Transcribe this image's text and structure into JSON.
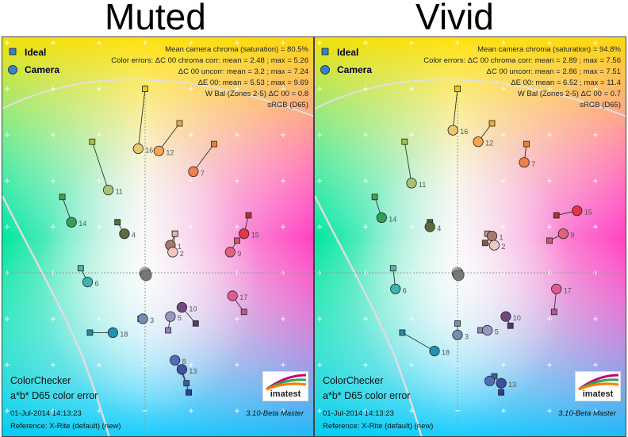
{
  "titles": {
    "left": "Muted",
    "right": "Vivid"
  },
  "legend": {
    "ideal": "Ideal",
    "camera": "Camera"
  },
  "panels": [
    {
      "stats": [
        "Mean camera chroma (saturation) = 80.5%",
        "Color errors: ΔC 00 chroma corr:  mean = 2.48 ;  max = 5.26",
        "ΔC 00 uncorr:  mean = 3.2 ;  max = 7.24",
        "ΔE 00:  mean = 5.53 ;  max = 9.69",
        "W Bal (Zones 2-5) ΔC 00 = 0.8",
        "sRGB (D65)"
      ],
      "footer": {
        "line1": "ColorChecker",
        "line2": "a*b* D65 color error",
        "date": "01-Jul-2014 14:13:23",
        "version": "3.10-Beta  Master",
        "reference": "Reference: X-Rite (default) (new)"
      },
      "logo": "imatest"
    },
    {
      "stats": [
        "Mean camera chroma (saturation) = 94.8%",
        "Color errors: ΔC 00 chroma corr:  mean = 2.89 ;  max = 7.56",
        "ΔC 00 uncorr:  mean = 2.86 ;  max = 7.51",
        "ΔE 00:  mean = 6.52 ;  max = 11.4",
        "W Bal (Zones 2-5) ΔC 00 = 0.7",
        "sRGB (D65)"
      ],
      "footer": {
        "line1": "ColorChecker",
        "line2": "a*b* D65 color error",
        "date": "01-Jul-2014 14:13:23",
        "version": "3.10-Beta  Master",
        "reference": "Reference: X-Rite (default) (new)"
      },
      "logo": "imatest"
    }
  ],
  "chart_data": [
    {
      "type": "scatter",
      "title": "Muted",
      "xlim": [
        -60,
        70
      ],
      "ylim": [
        -70,
        100
      ],
      "grid": true,
      "legend_position": "top-left",
      "series": [
        {
          "name": "Ideal",
          "marker": "square",
          "points": [
            {
              "label": "1",
              "x": 13,
              "y": 17,
              "color": "#c79a84"
            },
            {
              "label": "2",
              "x": 13,
              "y": 17,
              "color": "#e9b7a4"
            },
            {
              "label": "3",
              "x": -2,
              "y": -20,
              "color": "#7290b2"
            },
            {
              "label": "4",
              "x": -12,
              "y": 22,
              "color": "#5d6b38"
            },
            {
              "label": "5",
              "x": 10,
              "y": -25,
              "color": "#8e86ba"
            },
            {
              "label": "6",
              "x": -28,
              "y": 2,
              "color": "#56b3b1"
            },
            {
              "label": "7",
              "x": 30,
              "y": 56,
              "color": "#f17d2c"
            },
            {
              "label": "8",
              "x": 18,
              "y": -48,
              "color": "#3d5cac"
            },
            {
              "label": "9",
              "x": 40,
              "y": 14,
              "color": "#d0566c"
            },
            {
              "label": "10",
              "x": 22,
              "y": -22,
              "color": "#5a376a"
            },
            {
              "label": "11",
              "x": -23,
              "y": 57,
              "color": "#a6c04d"
            },
            {
              "label": "12",
              "x": 15,
              "y": 65,
              "color": "#f8a530"
            },
            {
              "label": "13",
              "x": 19,
              "y": -52,
              "color": "#2c4194"
            },
            {
              "label": "14",
              "x": -36,
              "y": 33,
              "color": "#4b9b4a"
            },
            {
              "label": "15",
              "x": 45,
              "y": 25,
              "color": "#b32d35"
            },
            {
              "label": "16",
              "x": 0,
              "y": 80,
              "color": "#e9c820"
            },
            {
              "label": "17",
              "x": 43,
              "y": -17,
              "color": "#c0548e"
            },
            {
              "label": "18",
              "x": -24,
              "y": -26,
              "color": "#248aa6"
            }
          ]
        },
        {
          "name": "Camera",
          "marker": "circle",
          "points": [
            {
              "label": "1",
              "x": 11,
              "y": 12,
              "color": "#a87a6a"
            },
            {
              "label": "2",
              "x": 12,
              "y": 9,
              "color": "#f1c6bb"
            },
            {
              "label": "3",
              "x": -1,
              "y": -20,
              "color": "#6f8fb7"
            },
            {
              "label": "4",
              "x": -9,
              "y": 17,
              "color": "#5c6a40"
            },
            {
              "label": "5",
              "x": 11,
              "y": -19,
              "color": "#9a96c4"
            },
            {
              "label": "6",
              "x": -25,
              "y": -4,
              "color": "#3fb3b3"
            },
            {
              "label": "7",
              "x": 21,
              "y": 44,
              "color": "#f0804a"
            },
            {
              "label": "8",
              "x": 13,
              "y": -38,
              "color": "#4f6fba"
            },
            {
              "label": "9",
              "x": 37,
              "y": 9,
              "color": "#e0637c"
            },
            {
              "label": "10",
              "x": 16,
              "y": -15,
              "color": "#6e4a80"
            },
            {
              "label": "11",
              "x": -16,
              "y": 36,
              "color": "#a7c36f"
            },
            {
              "label": "12",
              "x": 6,
              "y": 53,
              "color": "#f4a550"
            },
            {
              "label": "13",
              "x": 16,
              "y": -42,
              "color": "#3b52a5"
            },
            {
              "label": "14",
              "x": -32,
              "y": 22,
              "color": "#2ea05a"
            },
            {
              "label": "15",
              "x": 43,
              "y": 17,
              "color": "#e0364a"
            },
            {
              "label": "16",
              "x": -3,
              "y": 54,
              "color": "#e8c770"
            },
            {
              "label": "17",
              "x": 38,
              "y": -10,
              "color": "#e05a94"
            },
            {
              "label": "18",
              "x": -14,
              "y": -26,
              "color": "#2490b0"
            }
          ]
        }
      ]
    },
    {
      "type": "scatter",
      "title": "Vivid",
      "xlim": [
        -60,
        70
      ],
      "ylim": [
        -70,
        100
      ],
      "grid": true,
      "legend_position": "top-left",
      "series": [
        {
          "name": "Ideal",
          "marker": "square",
          "points": [
            {
              "label": "1",
              "x": 13,
              "y": 17,
              "color": "#c79a84"
            },
            {
              "label": "2",
              "x": 12,
              "y": 13,
              "color": "#8a5a40"
            },
            {
              "label": "3",
              "x": 0,
              "y": -22,
              "color": "#7290b2"
            },
            {
              "label": "4",
              "x": -12,
              "y": 22,
              "color": "#5d6b38"
            },
            {
              "label": "5",
              "x": 10,
              "y": -25,
              "color": "#8e86ba"
            },
            {
              "label": "6",
              "x": -28,
              "y": 2,
              "color": "#56b3b1"
            },
            {
              "label": "7",
              "x": 30,
              "y": 56,
              "color": "#f17d2c"
            },
            {
              "label": "8",
              "x": 16,
              "y": -45,
              "color": "#3d5cac"
            },
            {
              "label": "9",
              "x": 40,
              "y": 14,
              "color": "#d0566c"
            },
            {
              "label": "10",
              "x": 23,
              "y": -23,
              "color": "#5a376a"
            },
            {
              "label": "11",
              "x": -23,
              "y": 57,
              "color": "#a6c04d"
            },
            {
              "label": "12",
              "x": 15,
              "y": 65,
              "color": "#f8a530"
            },
            {
              "label": "13",
              "x": 19,
              "y": -52,
              "color": "#2c4194"
            },
            {
              "label": "14",
              "x": -36,
              "y": 33,
              "color": "#4b9b4a"
            },
            {
              "label": "15",
              "x": 43,
              "y": 25,
              "color": "#b32d35"
            },
            {
              "label": "16",
              "x": 0,
              "y": 80,
              "color": "#e9c820"
            },
            {
              "label": "17",
              "x": 42,
              "y": -17,
              "color": "#c0548e"
            },
            {
              "label": "18",
              "x": -24,
              "y": -26,
              "color": "#248aa6"
            }
          ]
        },
        {
          "name": "Camera",
          "marker": "circle",
          "points": [
            {
              "label": "1",
              "x": 15,
              "y": 16,
              "color": "#a87a6a"
            },
            {
              "label": "2",
              "x": 16,
              "y": 12,
              "color": "#f1c6bb"
            },
            {
              "label": "3",
              "x": 0,
              "y": -27,
              "color": "#6f8fb7"
            },
            {
              "label": "4",
              "x": -12,
              "y": 20,
              "color": "#5c6a40"
            },
            {
              "label": "5",
              "x": 13,
              "y": -25,
              "color": "#9a96c4"
            },
            {
              "label": "6",
              "x": -27,
              "y": -7,
              "color": "#3fb3b3"
            },
            {
              "label": "7",
              "x": 29,
              "y": 48,
              "color": "#f0804a"
            },
            {
              "label": "8",
              "x": 14,
              "y": -47,
              "color": "#4f6fba"
            },
            {
              "label": "9",
              "x": 46,
              "y": 17,
              "color": "#e0637c"
            },
            {
              "label": "10",
              "x": 21,
              "y": -19,
              "color": "#6e4a80"
            },
            {
              "label": "11",
              "x": -20,
              "y": 39,
              "color": "#a7c36f"
            },
            {
              "label": "12",
              "x": 9,
              "y": 57,
              "color": "#f4a550"
            },
            {
              "label": "13",
              "x": 19,
              "y": -48,
              "color": "#3b52a5"
            },
            {
              "label": "14",
              "x": -33,
              "y": 24,
              "color": "#2ea05a"
            },
            {
              "label": "15",
              "x": 52,
              "y": 27,
              "color": "#e0364a"
            },
            {
              "label": "16",
              "x": -2,
              "y": 62,
              "color": "#e8c770"
            },
            {
              "label": "17",
              "x": 43,
              "y": -7,
              "color": "#e05a94"
            },
            {
              "label": "18",
              "x": -10,
              "y": -34,
              "color": "#2490b0"
            }
          ]
        }
      ]
    }
  ]
}
